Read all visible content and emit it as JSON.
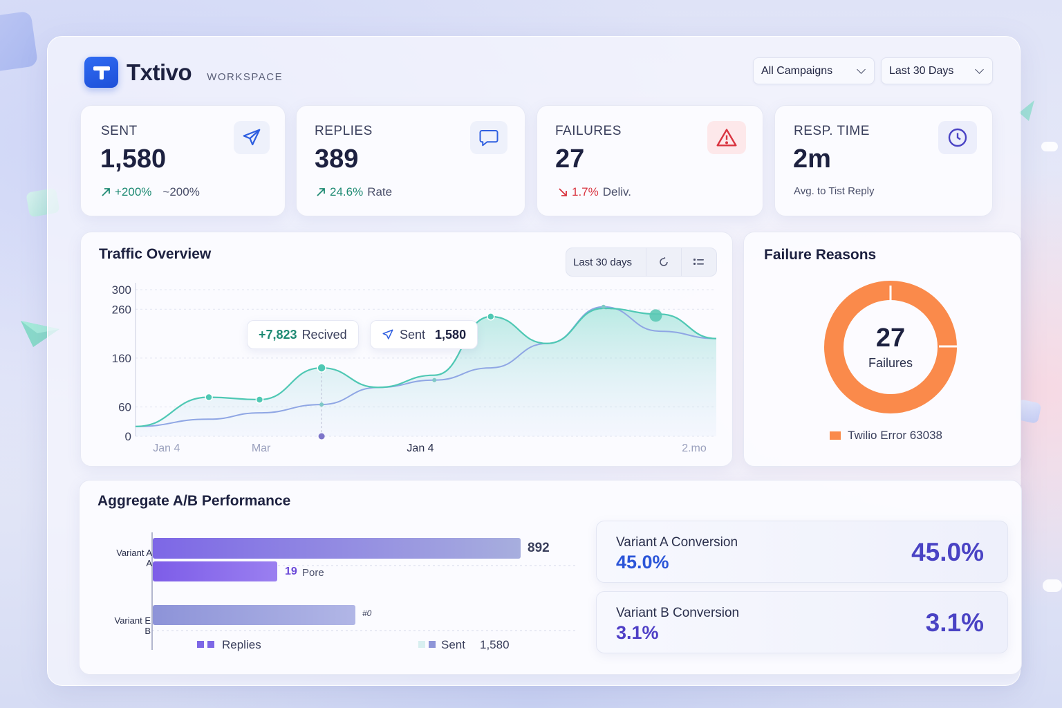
{
  "brand": {
    "name": "Txtivo",
    "subtitle": "WORKSPACE"
  },
  "filters": {
    "campaign": "All Campaigns",
    "range": "Last 30 Days"
  },
  "kpis": {
    "sent": {
      "label": "SENT",
      "value": "1,580",
      "delta": "+200%",
      "delta2": "~200%"
    },
    "replies": {
      "label": "REPLIES",
      "value": "389",
      "rate": "24.6%",
      "rate_label": "Rate"
    },
    "failures": {
      "label": "FAILURES",
      "value": "27",
      "rate": "1.7%",
      "rate_label": "Deliv."
    },
    "resp_time": {
      "label": "RESP. TIME",
      "value": "2m",
      "sub": "Avg. to Tist Reply"
    }
  },
  "traffic": {
    "title": "Traffic Overview",
    "range_label": "Last 30 days",
    "received_chip": {
      "value": "+7,823",
      "label": "Recived"
    },
    "sent_chip": {
      "label": "Sent",
      "value": "1,580"
    }
  },
  "failure_reasons": {
    "title": "Failure Reasons",
    "center_value": "27",
    "center_label": "Failures",
    "legend": "Twilio Error 63038",
    "color": "#fa8a4b"
  },
  "ab": {
    "title": "Aggregate A/B Performance",
    "variant_a_label": [
      "Variant A",
      "A"
    ],
    "variant_b_label": [
      "Variant E",
      "B"
    ],
    "bar_a_sent_label": "892",
    "bar_a_replies_value": "19",
    "bar_a_replies_label": "Pore",
    "bar_b_label": "#0",
    "legend_replies": "Replies",
    "legend_sent": "Sent",
    "legend_sent_value": "1,580",
    "conv_a": {
      "title": "Variant A Conversion",
      "value": "45.0%",
      "big": "45.0%"
    },
    "conv_b": {
      "title": "Variant B Conversion",
      "value": "3.1%",
      "big": "3.1%"
    }
  },
  "chart_data": [
    {
      "type": "line",
      "title": "Traffic Overview",
      "x_ticks": [
        "Jan 4",
        "Mar",
        "Jan 4",
        "2.mo"
      ],
      "y_ticks": [
        "300",
        "260",
        "160",
        "60",
        "0"
      ],
      "ylim": [
        0,
        300
      ],
      "series": [
        {
          "name": "Received",
          "color": "#4fc8b4",
          "x": [
            0,
            1.3,
            2.2,
            3.3,
            4.3,
            5.3,
            6.3,
            7.3,
            8.3,
            9.3,
            10.3
          ],
          "values": [
            20,
            80,
            75,
            140,
            100,
            125,
            245,
            190,
            262,
            250,
            200
          ]
        },
        {
          "name": "Sent",
          "color": "#8fa6e4",
          "x": [
            0,
            1.3,
            2.2,
            3.3,
            4.3,
            5.3,
            6.3,
            7.3,
            8.3,
            9.3,
            10.3
          ],
          "values": [
            20,
            35,
            48,
            65,
            100,
            115,
            140,
            190,
            265,
            215,
            200
          ]
        }
      ],
      "grid": true
    },
    {
      "type": "pie",
      "title": "Failure Reasons",
      "categories": [
        "Twilio Error 63038"
      ],
      "values": [
        27
      ]
    },
    {
      "type": "bar",
      "title": "Aggregate A/B Performance",
      "categories": [
        "Variant A",
        "Variant B"
      ],
      "series": [
        {
          "name": "Sent",
          "values": [
            892,
            500
          ]
        },
        {
          "name": "Replies",
          "values": [
            19,
            null
          ]
        }
      ]
    }
  ]
}
